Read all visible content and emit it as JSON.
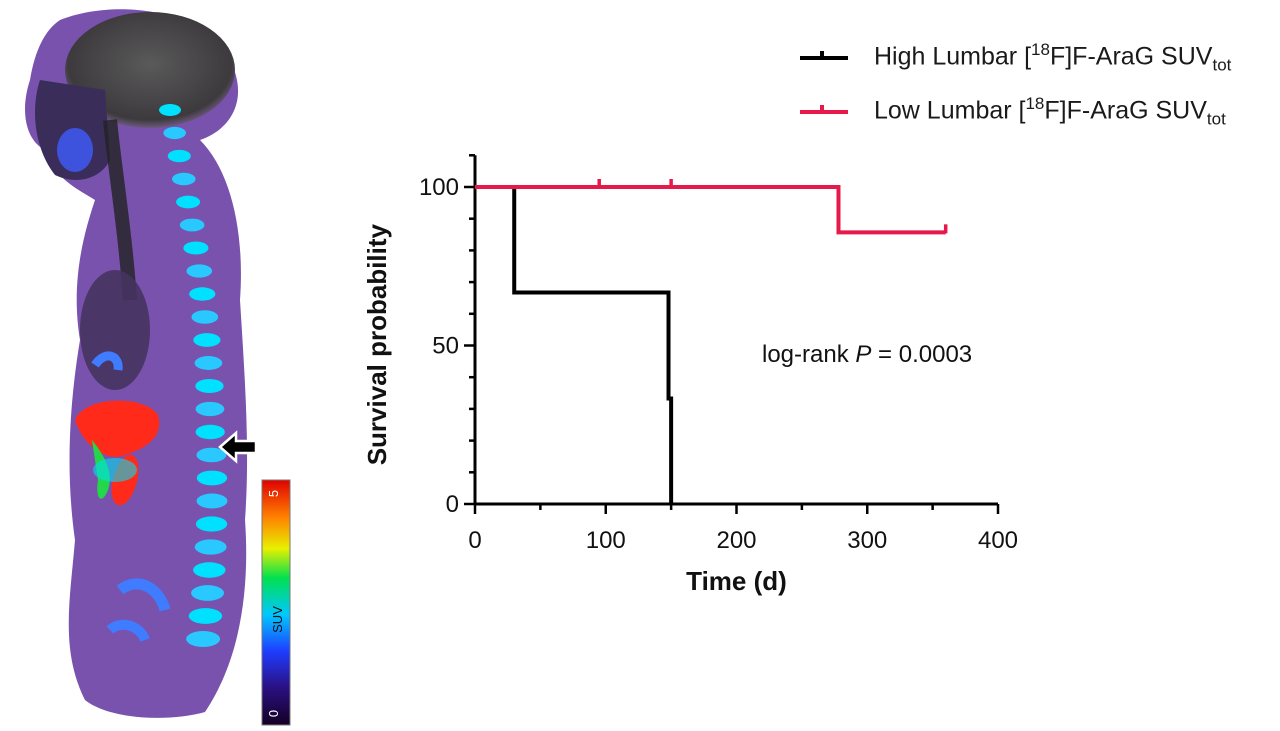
{
  "colors": {
    "high": "#000000",
    "low": "#e5194a"
  },
  "pet_image": {
    "colorbar": {
      "min_label": "0",
      "max_label": "5",
      "unit_label": "SUV"
    },
    "arrow_icon": "left-arrow-icon"
  },
  "legend": [
    {
      "prefix": "High Lumbar [",
      "sup": "18",
      "middle": "F]F-AraG SUV",
      "sub": "tot"
    },
    {
      "prefix": "Low Lumbar [",
      "sup": "18",
      "middle": "F]F-AraG SUV",
      "sub": "tot"
    }
  ],
  "chart_data": {
    "type": "line",
    "step": true,
    "xlabel": "Time (d)",
    "ylabel": "Survival probability",
    "xlim": [
      0,
      400
    ],
    "ylim": [
      0,
      110
    ],
    "xticks": [
      0,
      100,
      200,
      300,
      400
    ],
    "yticks": [
      0,
      50,
      100
    ],
    "grid": false,
    "legend_position": "top-right",
    "annotation": {
      "prefix": "log-rank ",
      "italic": "P",
      "suffix": " = 0.0003"
    },
    "series": [
      {
        "name": "High Lumbar [18F]F-AraG SUVtot",
        "points": [
          [
            0,
            100
          ],
          [
            30,
            100
          ],
          [
            30,
            66.7
          ],
          [
            148,
            66.7
          ],
          [
            148,
            33.3
          ],
          [
            150,
            33.3
          ],
          [
            150,
            0
          ]
        ],
        "censored": []
      },
      {
        "name": "Low Lumbar [18F]F-AraG SUVtot",
        "points": [
          [
            0,
            100
          ],
          [
            278,
            100
          ],
          [
            278,
            85.7
          ],
          [
            360,
            85.7
          ]
        ],
        "censored": [
          [
            95,
            100
          ],
          [
            150,
            100
          ],
          [
            360,
            85.7
          ]
        ]
      }
    ]
  }
}
